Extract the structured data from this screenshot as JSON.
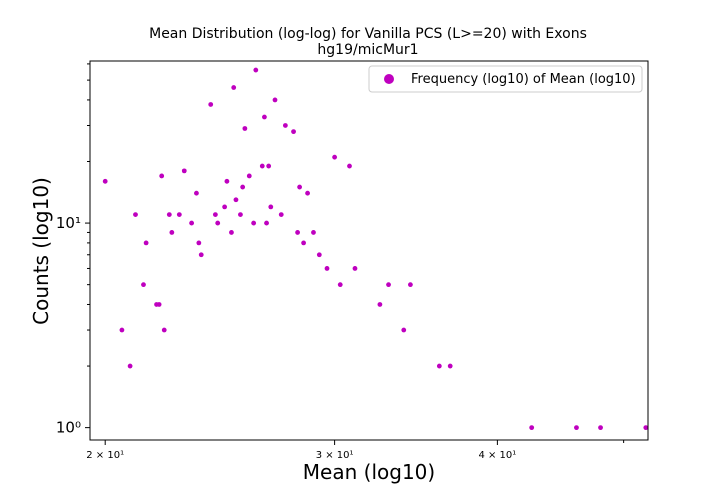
{
  "chart_data": {
    "type": "scatter",
    "title": "Mean Distribution (log-log) for Vanilla PCS (L>=20) with Exons",
    "subtitle": "hg19/micMur1",
    "xlabel": "Mean (log10)",
    "ylabel": "Counts (log10)",
    "xscale": "log",
    "yscale": "log",
    "xlim": [
      19.47,
      52.2
    ],
    "ylim": [
      0.87,
      62
    ],
    "x_ticks": [
      {
        "value": 20,
        "label": "2 × 10¹"
      },
      {
        "value": 30,
        "label": "3 × 10¹"
      },
      {
        "value": 40,
        "label": "4 × 10¹"
      }
    ],
    "y_ticks": [
      {
        "value": 1,
        "label": "10⁰"
      },
      {
        "value": 10,
        "label": "10¹"
      }
    ],
    "grid": false,
    "legend": {
      "position": "top-right",
      "entries": [
        "Frequency (log10) of Mean (log10)"
      ]
    },
    "color": "#bf00bf",
    "series": [
      {
        "name": "Frequency (log10) of Mean (log10)",
        "points": [
          [
            20.0,
            16
          ],
          [
            20.6,
            3
          ],
          [
            20.9,
            2
          ],
          [
            21.1,
            11
          ],
          [
            21.5,
            8
          ],
          [
            21.4,
            5
          ],
          [
            21.9,
            4
          ],
          [
            22.1,
            17
          ],
          [
            22.0,
            4
          ],
          [
            22.2,
            3
          ],
          [
            22.4,
            11
          ],
          [
            22.5,
            9
          ],
          [
            22.8,
            11
          ],
          [
            23.0,
            18
          ],
          [
            23.3,
            10
          ],
          [
            23.5,
            14
          ],
          [
            23.6,
            8
          ],
          [
            23.7,
            7
          ],
          [
            24.1,
            38
          ],
          [
            24.3,
            11
          ],
          [
            24.4,
            10
          ],
          [
            24.7,
            12
          ],
          [
            24.8,
            16
          ],
          [
            25.0,
            9
          ],
          [
            25.1,
            46
          ],
          [
            25.2,
            13
          ],
          [
            25.4,
            11
          ],
          [
            25.5,
            15
          ],
          [
            25.6,
            29
          ],
          [
            25.8,
            17
          ],
          [
            26.0,
            10
          ],
          [
            26.1,
            56
          ],
          [
            26.4,
            19
          ],
          [
            26.5,
            33
          ],
          [
            26.6,
            10
          ],
          [
            26.7,
            19
          ],
          [
            26.8,
            12
          ],
          [
            27.0,
            40
          ],
          [
            27.3,
            11
          ],
          [
            27.5,
            30
          ],
          [
            27.9,
            28
          ],
          [
            28.1,
            9
          ],
          [
            28.2,
            15
          ],
          [
            28.4,
            8
          ],
          [
            28.6,
            14
          ],
          [
            28.9,
            9
          ],
          [
            29.2,
            7
          ],
          [
            29.6,
            6
          ],
          [
            30.0,
            21
          ],
          [
            30.3,
            5
          ],
          [
            30.8,
            19
          ],
          [
            31.1,
            6
          ],
          [
            32.5,
            4
          ],
          [
            33.0,
            5
          ],
          [
            33.9,
            3
          ],
          [
            34.3,
            5
          ],
          [
            36.1,
            2
          ],
          [
            36.8,
            2
          ],
          [
            42.5,
            1
          ],
          [
            46.0,
            1
          ],
          [
            48.0,
            1
          ],
          [
            52.0,
            1
          ]
        ]
      }
    ]
  }
}
